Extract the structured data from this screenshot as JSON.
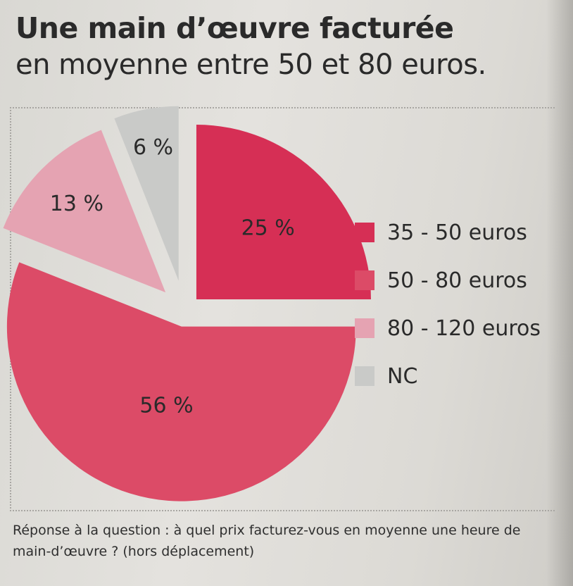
{
  "title_line1": "Une main d’œuvre facturée",
  "title_line2": "en moyenne entre 50 et 80 euros.",
  "caption": "Réponse à la question : à quel prix facturez-vous en moyenne une heure de main-d’œuvre ? (hors déplacement)",
  "chart_data": {
    "type": "pie",
    "title": "Une main d’œuvre facturée en moyenne entre 50 et 80 euros.",
    "categories": [
      "35 - 50 euros",
      "50 - 80 euros",
      "80 - 120 euros",
      "NC"
    ],
    "values": [
      25,
      56,
      13,
      6
    ],
    "value_labels": [
      "25 %",
      "56 %",
      "13 %",
      "6 %"
    ],
    "colors": [
      "#d62f55",
      "#dc4b67",
      "#e5a3b2",
      "#c9cac8"
    ],
    "legend_position": "right"
  }
}
